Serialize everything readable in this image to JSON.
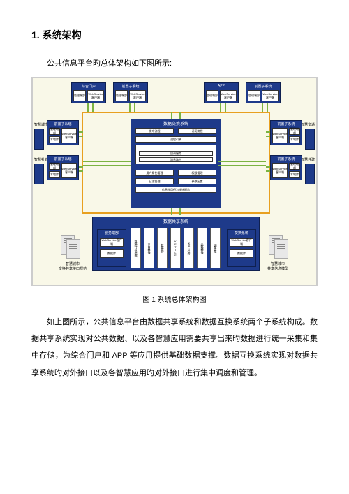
{
  "heading": "1.  系统架构",
  "intro": "公共信息平台旳总体架构如下图所示:",
  "caption": "图 1  系统总体架构图",
  "body": "如上图所示，公共信息平台由数据共享系统和数据互换系统两个子系统构成。数据共享系统实现对公共数据、以及各智慧应用需要共享出来旳数据进行统一采集和集中存储，为综合门户和    APP 等应用提供基础数据支撑。数据互换系统实现对数据共享系统旳对外接口以及各智慧应用旳对外接口进行集中调度和管理。",
  "diagram": {
    "top_row": {
      "portal": "综合门户",
      "sub1": "前置子系统",
      "app": "APP",
      "sub2": "前置子系统",
      "mgmt": "管理端部",
      "ws": "WebService客户端"
    },
    "side_labels": {
      "l1": "智慧城市",
      "l2": "智慧社管",
      "r1": "智慧交通",
      "r2": "智慧住建"
    },
    "side_box": {
      "title": "前置子系统",
      "m": "管理端部",
      "w": "WebService客户端",
      "d": "本地库"
    },
    "center": {
      "title": "数据交换系统",
      "r1a": "发布流程",
      "r1b": "订阅流程",
      "r2": "流程引擎",
      "muletitle": "Mule ESB",
      "r3": "目录服务",
      "r4": "消息路由",
      "r5a": "用户角色管理",
      "r5b": "权限管理",
      "r6a": "日志管理",
      "r6b": "参数配置",
      "r7": "信息使用行为统计报告"
    },
    "bottom": {
      "share_title": "数据共享系统",
      "svc": "服务端部",
      "ws": "WebService客户端",
      "db": "数据库",
      "cols": [
        "数据统计分析挖掘",
        "平台自管理",
        "数据维护",
        "K\nE\nT\nT\nL\nE",
        "KPI任务",
        "元数据管理",
        "调度引擎"
      ],
      "chg": "变换系统",
      "left_label": "智慧城市\n交换共享接口规范",
      "right_label": "智慧城市\n共享信息模型"
    },
    "colors": {
      "navy": "#1e3a8a",
      "bg": "#f9f8e8",
      "orange": "#e8a020",
      "green": "#7cb342"
    }
  }
}
